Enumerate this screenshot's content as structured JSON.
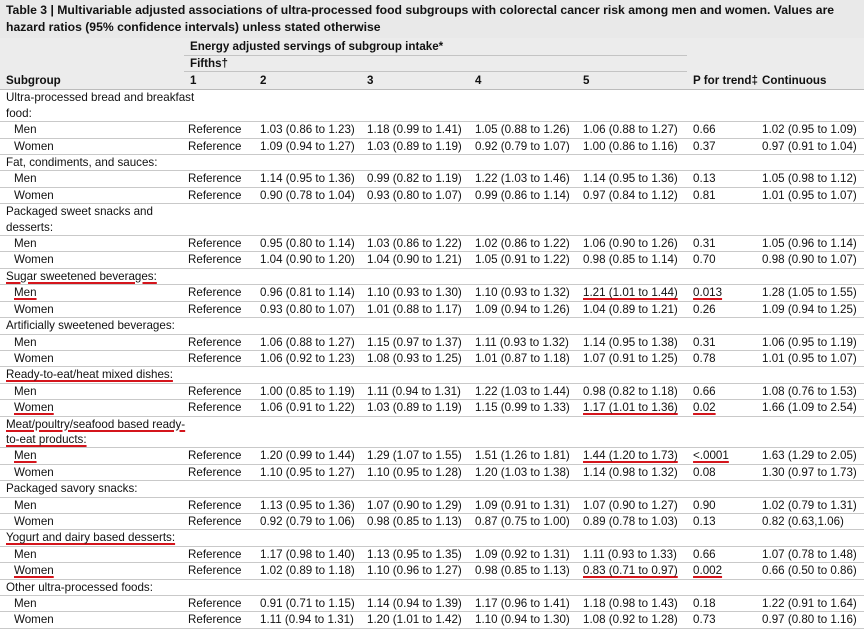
{
  "caption": "Table 3 | Multivariable adjusted associations of ultra-processed food subgroups with colorectal cancer risk among men and women. Values are hazard ratios (95% confidence intervals) unless stated otherwise",
  "header": {
    "span_label": "Energy adjusted servings of subgroup intake*",
    "fifths_label": "Fifths†",
    "col_subgroup": "Subgroup",
    "col_1": "1",
    "col_2": "2",
    "col_3": "3",
    "col_4": "4",
    "col_5": "5",
    "col_p": "P for trend‡",
    "col_cont": "Continuous"
  },
  "groups": [
    {
      "name_lines": [
        "Ultra-processed bread and breakfast",
        "food:"
      ],
      "highlight": false,
      "rows": [
        {
          "sex": "Men",
          "f1": "Reference",
          "f2": "1.03 (0.86 to 1.23)",
          "f3": "1.18 (0.99 to 1.41)",
          "f4": "1.05 (0.88 to 1.26)",
          "f5": "1.06 (0.88 to 1.27)",
          "p": "0.66",
          "cont": "1.02 (0.95 to 1.09)",
          "hl": false
        },
        {
          "sex": "Women",
          "f1": "Reference",
          "f2": "1.09 (0.94 to 1.27)",
          "f3": "1.03 (0.89 to 1.19)",
          "f4": "0.92 (0.79 to 1.07)",
          "f5": "1.00 (0.86 to 1.16)",
          "p": "0.37",
          "cont": "0.97 (0.91 to 1.04)",
          "hl": false
        }
      ]
    },
    {
      "name_lines": [
        "Fat, condiments, and sauces:"
      ],
      "highlight": false,
      "rows": [
        {
          "sex": "Men",
          "f1": "Reference",
          "f2": "1.14 (0.95 to 1.36)",
          "f3": "0.99 (0.82 to 1.19)",
          "f4": "1.22 (1.03 to 1.46)",
          "f5": "1.14 (0.95 to 1.36)",
          "p": "0.13",
          "cont": "1.05 (0.98 to 1.12)",
          "hl": false
        },
        {
          "sex": "Women",
          "f1": "Reference",
          "f2": "0.90 (0.78 to 1.04)",
          "f3": "0.93 (0.80 to 1.07)",
          "f4": "0.99 (0.86 to 1.14)",
          "f5": "0.97 (0.84 to 1.12)",
          "p": "0.81",
          "cont": "1.01 (0.95 to 1.07)",
          "hl": false
        }
      ]
    },
    {
      "name_lines": [
        "Packaged sweet snacks and",
        "desserts:"
      ],
      "highlight": false,
      "rows": [
        {
          "sex": "Men",
          "f1": "Reference",
          "f2": "0.95 (0.80 to 1.14)",
          "f3": "1.03 (0.86 to 1.22)",
          "f4": "1.02 (0.86 to 1.22)",
          "f5": "1.06 (0.90 to 1.26)",
          "p": "0.31",
          "cont": "1.05 (0.96 to 1.14)",
          "hl": false
        },
        {
          "sex": "Women",
          "f1": "Reference",
          "f2": "1.04 (0.90 to 1.20)",
          "f3": "1.04 (0.90 to 1.21)",
          "f4": "1.05 (0.91 to 1.22)",
          "f5": "0.98 (0.85 to 1.14)",
          "p": "0.70",
          "cont": "0.98 (0.90 to 1.07)",
          "hl": false
        }
      ]
    },
    {
      "name_lines": [
        "Sugar sweetened beverages:"
      ],
      "highlight": true,
      "rows": [
        {
          "sex": "Men",
          "f1": "Reference",
          "f2": "0.96 (0.81 to 1.14)",
          "f3": "1.10 (0.93 to 1.30)",
          "f4": "1.10 (0.93 to 1.32)",
          "f5": "1.21 (1.01 to 1.44)",
          "p": "0.013",
          "cont": "1.28 (1.05 to 1.55)",
          "hl": true
        },
        {
          "sex": "Women",
          "f1": "Reference",
          "f2": "0.93 (0.80 to 1.07)",
          "f3": "1.01 (0.88 to 1.17)",
          "f4": "1.09 (0.94 to 1.26)",
          "f5": "1.04 (0.89 to 1.21)",
          "p": "0.26",
          "cont": "1.09 (0.94 to 1.25)",
          "hl": false
        }
      ]
    },
    {
      "name_lines": [
        "Artificially sweetened beverages:"
      ],
      "highlight": false,
      "rows": [
        {
          "sex": "Men",
          "f1": "Reference",
          "f2": "1.06 (0.88 to 1.27)",
          "f3": "1.15 (0.97 to 1.37)",
          "f4": "1.11 (0.93 to 1.32)",
          "f5": "1.14 (0.95 to 1.38)",
          "p": "0.31",
          "cont": "1.06 (0.95 to 1.19)",
          "hl": false
        },
        {
          "sex": "Women",
          "f1": "Reference",
          "f2": "1.06 (0.92 to 1.23)",
          "f3": "1.08 (0.93 to 1.25)",
          "f4": "1.01 (0.87 to 1.18)",
          "f5": "1.07 (0.91 to 1.25)",
          "p": "0.78",
          "cont": "1.01 (0.95 to 1.07)",
          "hl": false
        }
      ]
    },
    {
      "name_lines": [
        "Ready-to-eat/heat mixed dishes:"
      ],
      "highlight": true,
      "rows": [
        {
          "sex": "Men",
          "f1": "Reference",
          "f2": "1.00 (0.85 to 1.19)",
          "f3": "1.11 (0.94 to 1.31)",
          "f4": "1.22 (1.03 to 1.44)",
          "f5": "0.98 (0.82 to 1.18)",
          "p": "0.66",
          "cont": "1.08 (0.76 to 1.53)",
          "hl": false
        },
        {
          "sex": "Women",
          "f1": "Reference",
          "f2": "1.06 (0.91 to 1.22)",
          "f3": "1.03 (0.89 to 1.19)",
          "f4": "1.15 (0.99 to 1.33)",
          "f5": "1.17 (1.01 to 1.36)",
          "p": "0.02",
          "cont": "1.66 (1.09 to 2.54)",
          "hl": true
        }
      ]
    },
    {
      "name_lines": [
        "Meat/poultry/seafood based ready-",
        "to-eat products:"
      ],
      "highlight": true,
      "rows": [
        {
          "sex": "Men",
          "f1": "Reference",
          "f2": "1.20 (0.99 to 1.44)",
          "f3": "1.29 (1.07 to 1.55)",
          "f4": "1.51 (1.26 to 1.81)",
          "f5": "1.44 (1.20 to 1.73)",
          "p": "<.0001",
          "cont": "1.63 (1.29 to 2.05)",
          "hl": true
        },
        {
          "sex": "Women",
          "f1": "Reference",
          "f2": "1.10 (0.95 to 1.27)",
          "f3": "1.10 (0.95 to 1.28)",
          "f4": "1.20 (1.03 to 1.38)",
          "f5": "1.14 (0.98 to 1.32)",
          "p": "0.08",
          "cont": "1.30 (0.97 to 1.73)",
          "hl": false
        }
      ]
    },
    {
      "name_lines": [
        "Packaged savory snacks:"
      ],
      "highlight": false,
      "rows": [
        {
          "sex": "Men",
          "f1": "Reference",
          "f2": "1.13 (0.95 to 1.36)",
          "f3": "1.07 (0.90 to 1.29)",
          "f4": "1.09 (0.91 to 1.31)",
          "f5": "1.07 (0.90 to 1.27)",
          "p": "0.90",
          "cont": "1.02 (0.79 to 1.31)",
          "hl": false
        },
        {
          "sex": "Women",
          "f1": "Reference",
          "f2": "0.92 (0.79 to 1.06)",
          "f3": "0.98 (0.85 to 1.13)",
          "f4": "0.87 (0.75 to 1.00)",
          "f5": "0.89 (0.78 to 1.03)",
          "p": "0.13",
          "cont": "0.82 (0.63,1.06)",
          "hl": false
        }
      ]
    },
    {
      "name_lines": [
        "Yogurt and dairy based desserts:"
      ],
      "highlight": true,
      "rows": [
        {
          "sex": "Men",
          "f1": "Reference",
          "f2": "1.17 (0.98 to 1.40)",
          "f3": "1.13 (0.95 to 1.35)",
          "f4": "1.09 (0.92 to 1.31)",
          "f5": "1.11 (0.93 to 1.33)",
          "p": "0.66",
          "cont": "1.07 (0.78 to 1.48)",
          "hl": false
        },
        {
          "sex": "Women",
          "f1": "Reference",
          "f2": "1.02 (0.89 to 1.18)",
          "f3": "1.10 (0.96 to 1.27)",
          "f4": "0.98 (0.85 to 1.13)",
          "f5": "0.83 (0.71 to 0.97)",
          "p": "0.002",
          "cont": "0.66 (0.50 to 0.86)",
          "hl": true
        }
      ]
    },
    {
      "name_lines": [
        "Other ultra-processed foods:"
      ],
      "highlight": false,
      "rows": [
        {
          "sex": "Men",
          "f1": "Reference",
          "f2": "0.91 (0.71 to 1.15)",
          "f3": "1.14 (0.94 to 1.39)",
          "f4": "1.17 (0.96 to 1.41)",
          "f5": "1.18 (0.98 to 1.43)",
          "p": "0.18",
          "cont": "1.22 (0.91 to 1.64)",
          "hl": false
        },
        {
          "sex": "Women",
          "f1": "Reference",
          "f2": "1.11 (0.94 to 1.31)",
          "f3": "1.20 (1.01 to 1.42)",
          "f4": "1.10 (0.94 to 1.30)",
          "f5": "1.08 (0.92 to 1.28)",
          "p": "0.73",
          "cont": "0.97 (0.80 to 1.16)",
          "hl": false
        }
      ]
    }
  ]
}
